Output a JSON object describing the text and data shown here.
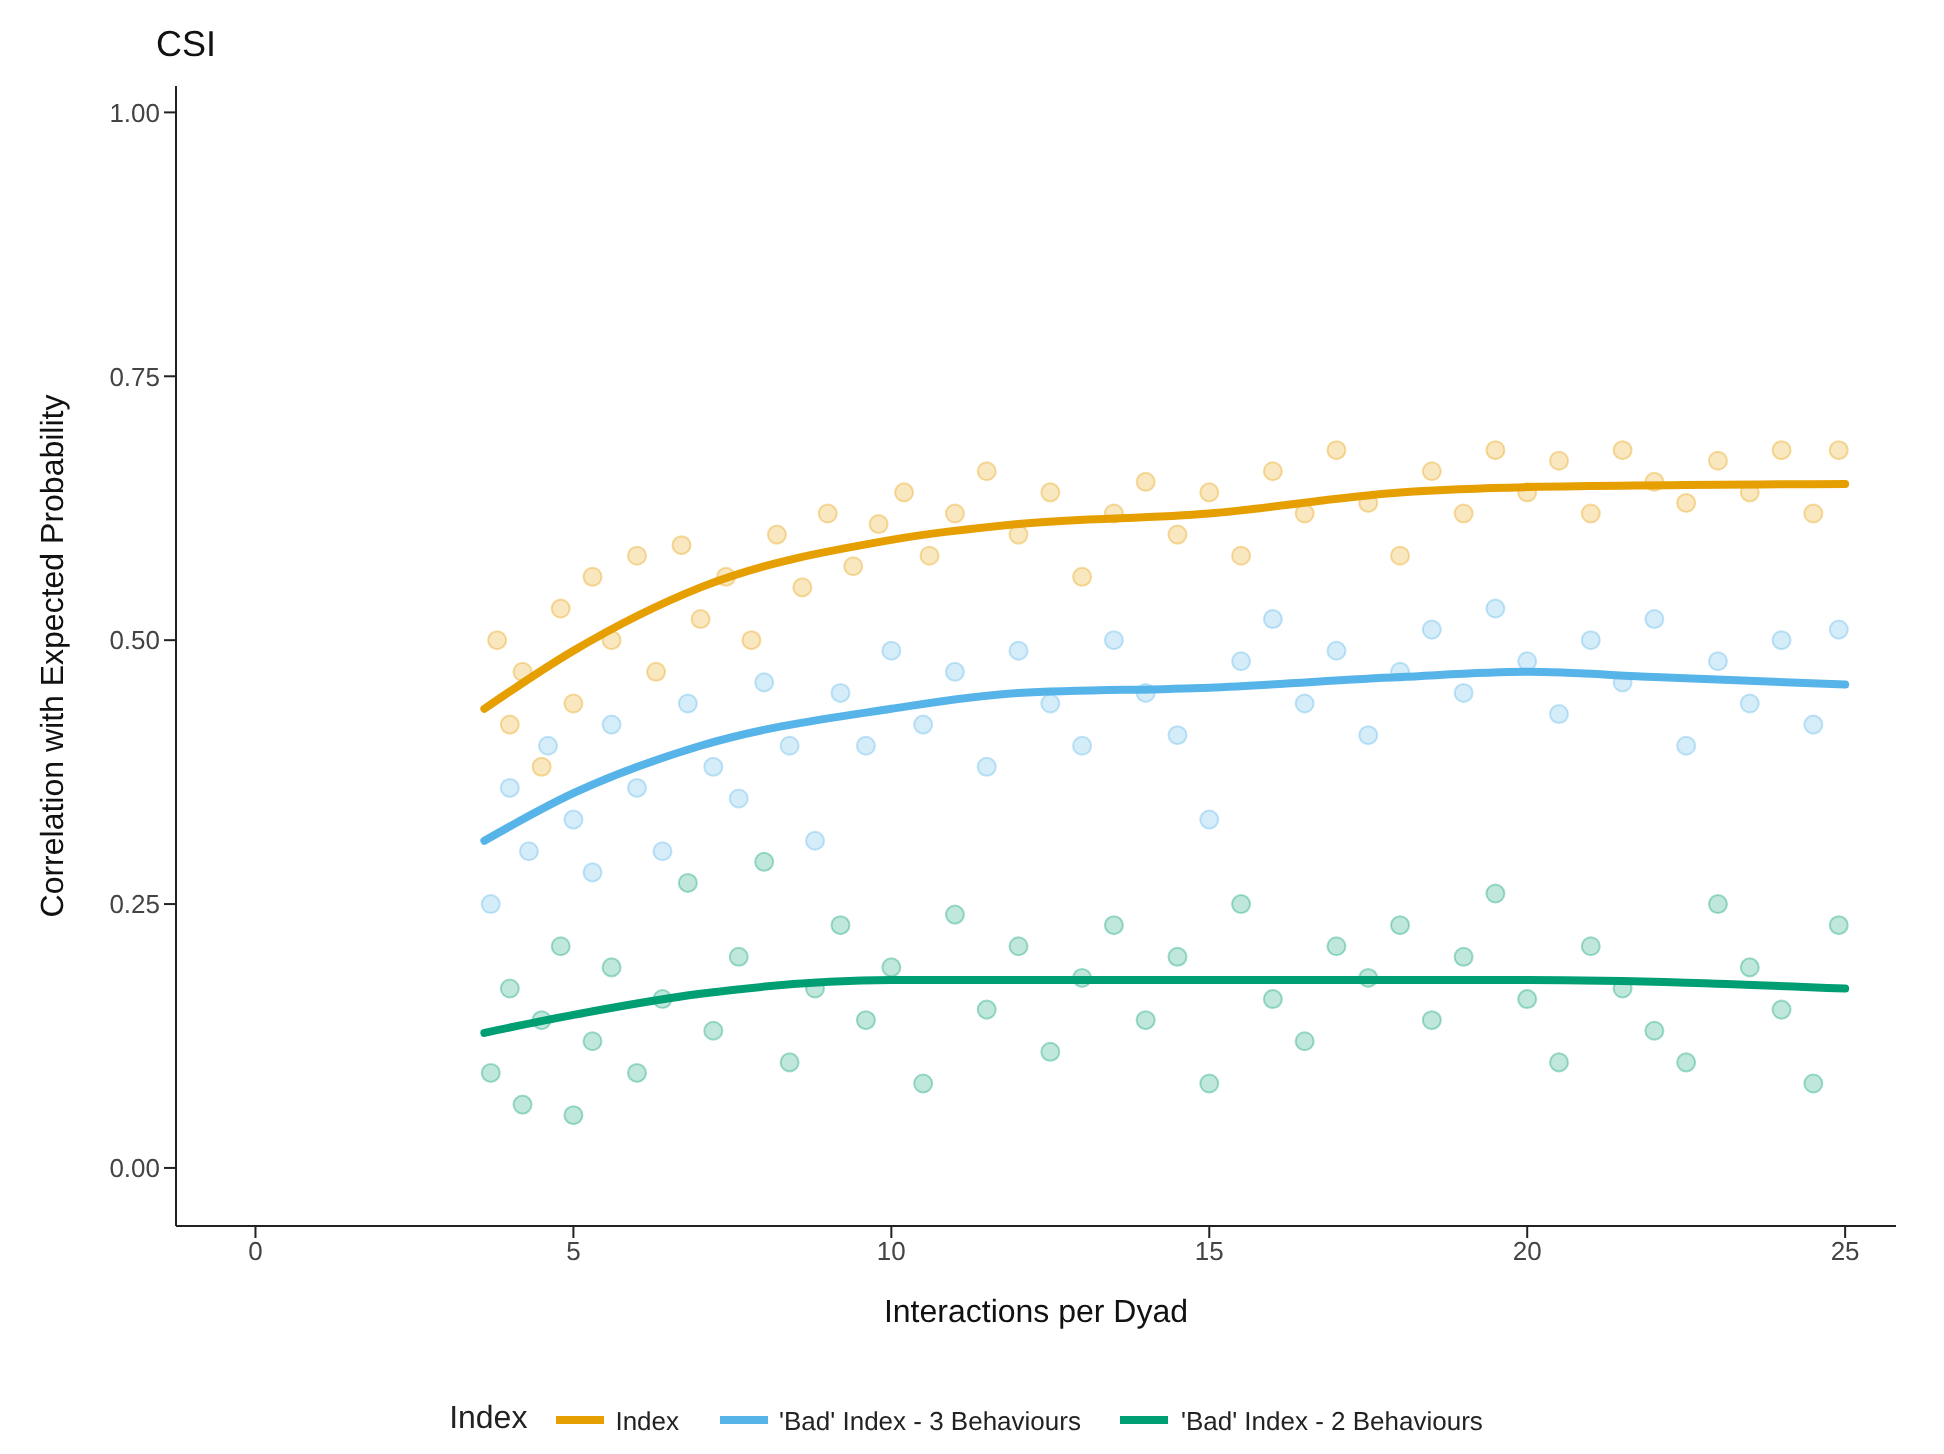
{
  "chart_data": {
    "type": "scatter",
    "title": "CSI",
    "xlabel": "Interactions per Dyad",
    "ylabel": "Correlation with Expected Probability",
    "legend_title": "Index",
    "legend": "bottom",
    "grid": false,
    "marker": "circle",
    "xlim": [
      -1.25,
      25.8
    ],
    "xticks": [
      0,
      5,
      10,
      15,
      20,
      25
    ],
    "ylim": [
      -0.055,
      1.025
    ],
    "yticks": [
      {
        "value": 0,
        "label": "0.00"
      },
      {
        "value": 0.25,
        "label": "0.25"
      },
      {
        "value": 0.5,
        "label": "0.50"
      },
      {
        "value": 0.75,
        "label": "0.75"
      },
      {
        "value": 1,
        "label": "1.00"
      }
    ],
    "series": [
      {
        "color": "#e69f00",
        "x": [
          3.8,
          4.0,
          4.2,
          4.5,
          4.8,
          5.0,
          5.3,
          5.6,
          6.0,
          6.3,
          6.7,
          7.0,
          7.4,
          7.8,
          8.2,
          8.6,
          9.0,
          9.4,
          9.8,
          10.2,
          10.6,
          11.0,
          11.5,
          12.0,
          12.5,
          13.0,
          13.5,
          14.0,
          14.5,
          15.0,
          15.5,
          16.0,
          16.5,
          17.0,
          17.5,
          18.0,
          18.5,
          19.0,
          19.5,
          20.0,
          20.5,
          21.0,
          21.5,
          22.0,
          22.5,
          23.0,
          23.5,
          24.0,
          24.5,
          24.9
        ],
        "values": [
          0.5,
          0.42,
          0.47,
          0.38,
          0.53,
          0.44,
          0.56,
          0.5,
          0.58,
          0.47,
          0.59,
          0.52,
          0.56,
          0.5,
          0.6,
          0.55,
          0.62,
          0.57,
          0.61,
          0.64,
          0.58,
          0.62,
          0.66,
          0.6,
          0.64,
          0.56,
          0.62,
          0.65,
          0.6,
          0.64,
          0.58,
          0.66,
          0.62,
          0.68,
          0.63,
          0.58,
          0.66,
          0.62,
          0.68,
          0.64,
          0.67,
          0.62,
          0.68,
          0.65,
          0.63,
          0.67,
          0.64,
          0.68,
          0.62,
          0.68
        ]
      },
      {
        "color": "#56b4e9",
        "x": [
          3.7,
          4.0,
          4.3,
          4.6,
          5.0,
          5.3,
          5.6,
          6.0,
          6.4,
          6.8,
          7.2,
          7.6,
          8.0,
          8.4,
          8.8,
          9.2,
          9.6,
          10.0,
          10.5,
          11.0,
          11.5,
          12.0,
          12.5,
          13.0,
          13.5,
          14.0,
          14.5,
          15.0,
          15.5,
          16.0,
          16.5,
          17.0,
          17.5,
          18.0,
          18.5,
          19.0,
          19.5,
          20.0,
          20.5,
          21.0,
          21.5,
          22.0,
          22.5,
          23.0,
          23.5,
          24.0,
          24.5,
          24.9
        ],
        "values": [
          0.25,
          0.36,
          0.3,
          0.4,
          0.33,
          0.28,
          0.42,
          0.36,
          0.3,
          0.44,
          0.38,
          0.35,
          0.46,
          0.4,
          0.31,
          0.45,
          0.4,
          0.49,
          0.42,
          0.47,
          0.38,
          0.49,
          0.44,
          0.4,
          0.5,
          0.45,
          0.41,
          0.33,
          0.48,
          0.52,
          0.44,
          0.49,
          0.41,
          0.47,
          0.51,
          0.45,
          0.53,
          0.48,
          0.43,
          0.5,
          0.46,
          0.52,
          0.4,
          0.48,
          0.44,
          0.5,
          0.42,
          0.51
        ]
      },
      {
        "color": "#009e73",
        "x": [
          3.7,
          4.0,
          4.2,
          4.5,
          4.8,
          5.0,
          5.3,
          5.6,
          6.0,
          6.4,
          6.8,
          7.2,
          7.6,
          8.0,
          8.4,
          8.8,
          9.2,
          9.6,
          10.0,
          10.5,
          11.0,
          11.5,
          12.0,
          12.5,
          13.0,
          13.5,
          14.0,
          14.5,
          15.0,
          15.5,
          16.0,
          16.5,
          17.0,
          17.5,
          18.0,
          18.5,
          19.0,
          19.5,
          20.0,
          20.5,
          21.0,
          21.5,
          22.0,
          22.5,
          23.0,
          23.5,
          24.0,
          24.5,
          24.9
        ],
        "values": [
          0.09,
          0.17,
          0.06,
          0.14,
          0.21,
          0.05,
          0.12,
          0.19,
          0.09,
          0.16,
          0.27,
          0.13,
          0.2,
          0.29,
          0.1,
          0.17,
          0.23,
          0.14,
          0.19,
          0.08,
          0.24,
          0.15,
          0.21,
          0.11,
          0.18,
          0.23,
          0.14,
          0.2,
          0.08,
          0.25,
          0.16,
          0.12,
          0.21,
          0.18,
          0.23,
          0.14,
          0.2,
          0.26,
          0.16,
          0.1,
          0.21,
          0.17,
          0.13,
          0.1,
          0.25,
          0.19,
          0.15,
          0.08,
          0.23
        ]
      },
      {
        "type": "line",
        "marker": "none",
        "name": "Index",
        "color": "#e69f00",
        "x": [
          3.6,
          5,
          7,
          10,
          12,
          15,
          18,
          20,
          25
        ],
        "values": [
          0.435,
          0.49,
          0.55,
          0.595,
          0.61,
          0.62,
          0.64,
          0.645,
          0.648
        ]
      },
      {
        "type": "line",
        "marker": "none",
        "name": "'Bad' Index - 3 Behaviours",
        "color": "#56b4e9",
        "x": [
          3.6,
          5,
          7,
          10,
          12,
          15,
          18,
          20,
          22,
          25
        ],
        "values": [
          0.31,
          0.355,
          0.4,
          0.435,
          0.45,
          0.455,
          0.465,
          0.47,
          0.465,
          0.458
        ]
      },
      {
        "type": "line",
        "marker": "none",
        "name": "'Bad' Index - 2 Behaviours",
        "color": "#009e73",
        "x": [
          3.6,
          5,
          7,
          10,
          15,
          20,
          25
        ],
        "values": [
          0.128,
          0.145,
          0.165,
          0.178,
          0.178,
          0.178,
          0.17
        ]
      }
    ]
  }
}
